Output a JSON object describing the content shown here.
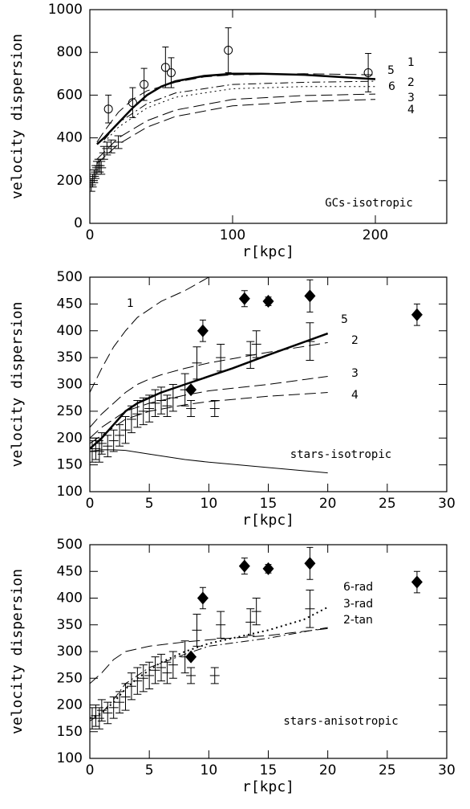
{
  "chart_data": [
    {
      "type": "line",
      "annotation": "GCs-isotropic",
      "x_label": "r[kpc]",
      "y_label": "velocity  dispersion",
      "xlim": [
        0,
        250
      ],
      "ylim": [
        0,
        1000
      ],
      "xticks": [
        0,
        100,
        200
      ],
      "yticks": [
        0,
        200,
        400,
        600,
        800,
        1000
      ],
      "series": [
        {
          "name": "5",
          "dash": "solid",
          "width": 2.5,
          "color": "#000",
          "x": [
            5,
            10,
            20,
            30,
            40,
            50,
            60,
            80,
            100,
            120,
            150,
            200
          ],
          "values": [
            370,
            400,
            470,
            540,
            600,
            640,
            665,
            690,
            700,
            700,
            695,
            675
          ]
        },
        {
          "name": "1",
          "dash": "dash",
          "width": 1,
          "color": "#000",
          "x": [
            5,
            10,
            20,
            30,
            40,
            60,
            80,
            100,
            150,
            200
          ],
          "values": [
            380,
            430,
            520,
            580,
            620,
            660,
            685,
            695,
            700,
            695
          ]
        },
        {
          "name": "6",
          "dash": "dot",
          "width": 1,
          "color": "#000",
          "x": [
            10,
            20,
            40,
            60,
            100,
            150,
            200
          ],
          "values": [
            380,
            450,
            540,
            590,
            630,
            640,
            640
          ]
        },
        {
          "name": "2",
          "dash": "dashdot",
          "width": 1,
          "color": "#000",
          "x": [
            10,
            20,
            40,
            60,
            100,
            150,
            200
          ],
          "values": [
            390,
            470,
            560,
            610,
            650,
            660,
            665
          ]
        },
        {
          "name": "3",
          "dash": "dash",
          "width": 1,
          "color": "#000",
          "x": [
            5,
            20,
            40,
            60,
            100,
            150,
            200
          ],
          "values": [
            300,
            400,
            480,
            530,
            580,
            598,
            605
          ]
        },
        {
          "name": "4",
          "dash": "dash",
          "width": 1,
          "color": "#000",
          "x": [
            5,
            20,
            40,
            60,
            100,
            150,
            200
          ],
          "values": [
            280,
            370,
            450,
            500,
            550,
            570,
            580
          ]
        },
        {
          "marker": "circle",
          "color": "#000",
          "x": [
            13,
            30,
            38,
            53,
            57,
            97,
            195
          ],
          "values": [
            535,
            565,
            650,
            730,
            705,
            810,
            705
          ],
          "errors": [
            65,
            70,
            75,
            95,
            70,
            105,
            90
          ]
        },
        {
          "marker": "cross",
          "color": "#000",
          "x": [
            1,
            2,
            3,
            4,
            5,
            6,
            7,
            8,
            10,
            12,
            15,
            20
          ],
          "values": [
            180,
            200,
            220,
            240,
            260,
            270,
            270,
            260,
            330,
            350,
            360,
            380
          ],
          "errors": [
            30,
            30,
            30,
            30,
            30,
            30,
            30,
            30,
            30,
            30,
            30,
            30
          ]
        }
      ]
    },
    {
      "type": "line",
      "annotation": "stars-isotropic",
      "x_label": "r[kpc]",
      "y_label": "velocity  dispersion",
      "xlim": [
        0,
        30
      ],
      "ylim": [
        100,
        500
      ],
      "xticks": [
        0,
        5,
        10,
        15,
        20,
        25,
        30
      ],
      "yticks": [
        100,
        150,
        200,
        250,
        300,
        350,
        400,
        450,
        500
      ],
      "series": [
        {
          "name": "1",
          "dash": "dash",
          "width": 1,
          "color": "#000",
          "x": [
            0,
            1,
            2,
            3,
            4,
            5,
            6,
            8,
            10
          ],
          "values": [
            285,
            330,
            370,
            400,
            425,
            440,
            455,
            475,
            500
          ]
        },
        {
          "name": "5",
          "dash": "solid",
          "width": 2.5,
          "color": "#000",
          "x": [
            0,
            1,
            2,
            3,
            4,
            5,
            6,
            8,
            10,
            12,
            15,
            20
          ],
          "values": [
            180,
            200,
            225,
            250,
            265,
            275,
            285,
            300,
            315,
            330,
            355,
            395
          ]
        },
        {
          "name": "2",
          "dash": "dash",
          "width": 1,
          "color": "#000",
          "x": [
            0,
            1,
            2,
            3,
            4,
            5,
            6,
            8,
            10,
            15,
            20
          ],
          "values": [
            220,
            245,
            265,
            285,
            300,
            310,
            318,
            330,
            340,
            360,
            378
          ]
        },
        {
          "name": "3",
          "dash": "dash",
          "width": 1,
          "color": "#000",
          "x": [
            0,
            1,
            2,
            3,
            5,
            8,
            10,
            15,
            20
          ],
          "values": [
            200,
            220,
            235,
            250,
            265,
            280,
            288,
            300,
            315
          ]
        },
        {
          "name": "4",
          "dash": "dash",
          "width": 1,
          "color": "#000",
          "x": [
            0,
            1,
            2,
            3,
            5,
            8,
            10,
            15,
            20
          ],
          "values": [
            190,
            205,
            220,
            235,
            250,
            262,
            268,
            278,
            285
          ]
        },
        {
          "dash": "solid",
          "width": 1,
          "color": "#000",
          "x": [
            0,
            1,
            2,
            3,
            5,
            8,
            10,
            15,
            20
          ],
          "values": [
            175,
            178,
            178,
            177,
            170,
            160,
            155,
            145,
            135
          ]
        },
        {
          "marker": "diamond",
          "color": "#000",
          "x": [
            8.5,
            9.5,
            13,
            15,
            18.5,
            27.5
          ],
          "values": [
            290,
            400,
            460,
            455,
            465,
            430
          ],
          "errors": [
            0,
            20,
            15,
            8,
            30,
            20
          ]
        },
        {
          "marker": "cross",
          "color": "#000",
          "x": [
            0.2,
            0.5,
            0.8,
            1,
            1.5,
            2,
            2.5,
            3,
            3.5,
            4,
            4.5,
            5,
            5.5,
            6,
            6.5,
            7,
            8,
            8.5,
            9,
            10.5,
            11,
            13.5,
            14,
            18.5
          ],
          "values": [
            175,
            180,
            175,
            190,
            185,
            195,
            205,
            215,
            235,
            245,
            250,
            255,
            265,
            270,
            260,
            275,
            290,
            255,
            340,
            255,
            350,
            355,
            375,
            380
          ],
          "errors": [
            20,
            20,
            20,
            20,
            20,
            20,
            20,
            25,
            25,
            25,
            25,
            25,
            25,
            25,
            20,
            25,
            30,
            15,
            30,
            15,
            25,
            25,
            25,
            35
          ]
        }
      ]
    },
    {
      "type": "line",
      "annotation": "stars-anisotropic",
      "x_label": "r[kpc]",
      "y_label": "velocity  dispersion",
      "xlim": [
        0,
        30
      ],
      "ylim": [
        100,
        500
      ],
      "xticks": [
        0,
        5,
        10,
        15,
        20,
        25,
        30
      ],
      "yticks": [
        100,
        150,
        200,
        250,
        300,
        350,
        400,
        450,
        500
      ],
      "series": [
        {
          "name": "6-rad",
          "dash": "dot",
          "width": 2,
          "color": "#000",
          "x": [
            0,
            1,
            2,
            3,
            4,
            5,
            6,
            8,
            10,
            12,
            15,
            18,
            20
          ],
          "values": [
            175,
            185,
            205,
            230,
            250,
            265,
            280,
            300,
            315,
            325,
            340,
            360,
            383
          ]
        },
        {
          "name": "3-rad",
          "dash": "dashdot",
          "width": 1,
          "color": "#000",
          "x": [
            0,
            1,
            2,
            3,
            5,
            8,
            10,
            15,
            20
          ],
          "values": [
            170,
            185,
            210,
            240,
            270,
            295,
            310,
            325,
            345
          ]
        },
        {
          "name": "2-tan",
          "dash": "dash",
          "width": 1,
          "color": "#000",
          "x": [
            0,
            1,
            2,
            3,
            5,
            8,
            10,
            15,
            20
          ],
          "values": [
            240,
            260,
            285,
            300,
            310,
            318,
            322,
            330,
            343
          ]
        },
        {
          "marker": "diamond",
          "color": "#000",
          "x": [
            8.5,
            9.5,
            13,
            15,
            18.5,
            27.5
          ],
          "values": [
            290,
            400,
            460,
            455,
            465,
            430
          ],
          "errors": [
            0,
            20,
            15,
            8,
            30,
            20
          ]
        },
        {
          "marker": "cross",
          "color": "#000",
          "x": [
            0.2,
            0.5,
            0.8,
            1,
            1.5,
            2,
            2.5,
            3,
            3.5,
            4,
            4.5,
            5,
            5.5,
            6,
            6.5,
            7,
            8,
            8.5,
            9,
            10.5,
            11,
            13.5,
            14,
            18.5
          ],
          "values": [
            175,
            180,
            175,
            190,
            185,
            195,
            205,
            215,
            235,
            245,
            250,
            255,
            265,
            270,
            260,
            275,
            290,
            255,
            340,
            255,
            350,
            355,
            375,
            380
          ],
          "errors": [
            20,
            20,
            20,
            20,
            20,
            20,
            20,
            25,
            25,
            25,
            25,
            25,
            25,
            25,
            20,
            25,
            30,
            15,
            30,
            15,
            25,
            25,
            25,
            35
          ]
        }
      ]
    }
  ]
}
